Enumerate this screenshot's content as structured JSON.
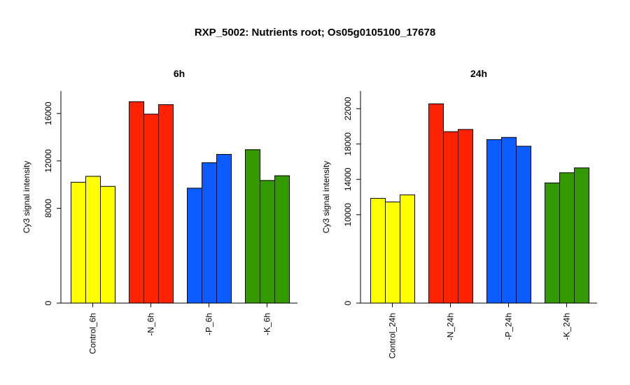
{
  "title": "RXP_5002: Nutrients root; Os05g0105100_17678",
  "chart_data": [
    {
      "type": "bar",
      "title": "6h",
      "ylabel": "Cy3 signal intensity",
      "ylim": [
        0,
        17900
      ],
      "yticks": [
        0,
        8000,
        12000,
        16000
      ],
      "grid": false,
      "groups": [
        {
          "label": "Control_6h",
          "color": "#ffff00",
          "values": [
            10200,
            10700,
            9850
          ]
        },
        {
          "label": "-N_6h",
          "color": "#ff2200",
          "values": [
            17000,
            15950,
            16750
          ]
        },
        {
          "label": "-P_6h",
          "color": "#0d5cff",
          "values": [
            9700,
            11850,
            12550
          ]
        },
        {
          "label": "-K_6h",
          "color": "#339900",
          "values": [
            12950,
            10350,
            10750
          ]
        }
      ]
    },
    {
      "type": "bar",
      "title": "24h",
      "ylabel": "Cy3 signal intensity",
      "ylim": [
        0,
        24000
      ],
      "yticks": [
        0,
        10000,
        14000,
        18000,
        22000
      ],
      "grid": false,
      "groups": [
        {
          "label": "Control_24h",
          "color": "#ffff00",
          "values": [
            11850,
            11450,
            12250
          ]
        },
        {
          "label": "-N_24h",
          "color": "#ff2200",
          "values": [
            22550,
            19400,
            19650
          ]
        },
        {
          "label": "-P_24h",
          "color": "#0d5cff",
          "values": [
            18500,
            18750,
            17750
          ]
        },
        {
          "label": "-K_24h",
          "color": "#339900",
          "values": [
            13600,
            14750,
            15300
          ]
        }
      ]
    }
  ]
}
